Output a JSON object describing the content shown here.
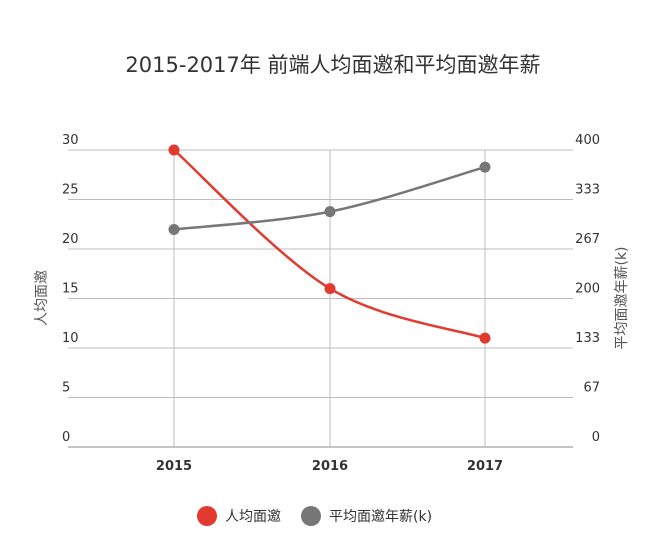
{
  "chart_data": {
    "type": "line",
    "title": "2015-2017年 前端人均面邀和平均面邀年薪",
    "categories": [
      "2015",
      "2016",
      "2017"
    ],
    "y_left": {
      "label": "人均面邀",
      "range": [
        0,
        30
      ],
      "ticks": [
        "0",
        "5",
        "10",
        "15",
        "20",
        "25",
        "30"
      ]
    },
    "y_right": {
      "label": "平均面邀年薪(k)",
      "range": [
        0,
        400
      ],
      "ticks": [
        "0",
        "67",
        "133",
        "200",
        "267",
        "333",
        "400"
      ]
    },
    "series": [
      {
        "name": "人均面邀",
        "axis": "left",
        "color": "#e23a2e",
        "values": [
          30,
          16,
          11
        ]
      },
      {
        "name": "平均面邀年薪(k)",
        "axis": "right",
        "color": "#777777",
        "values": [
          293,
          317,
          377
        ]
      }
    ],
    "legend_position": "bottom",
    "grid": true
  }
}
